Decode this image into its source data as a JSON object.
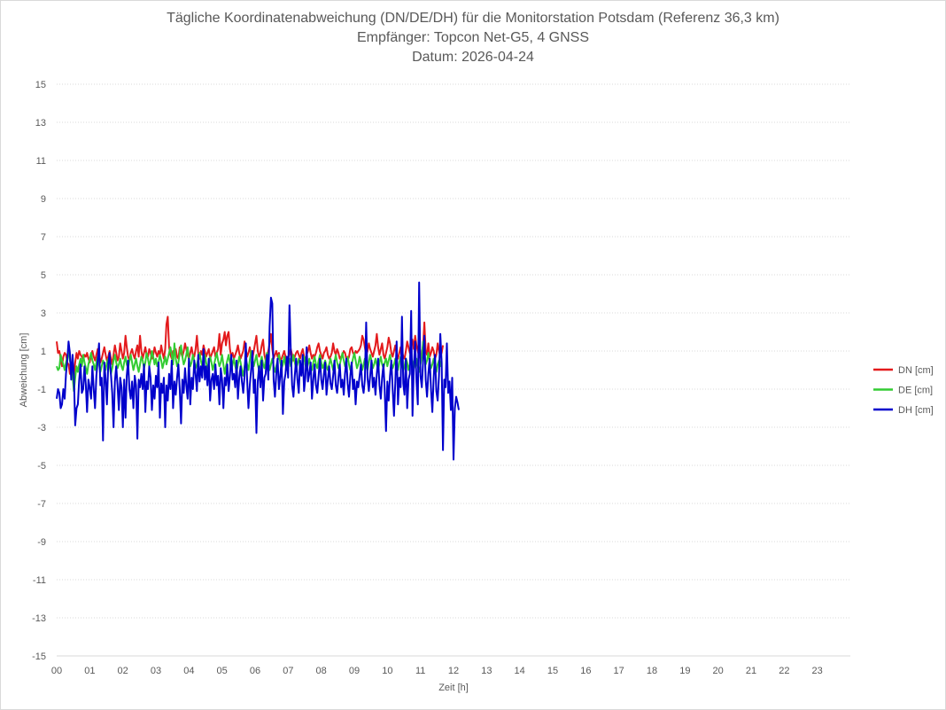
{
  "chart_data": {
    "type": "line",
    "title": "Tägliche Koordinatenabweichung (DN/DE/DH) für die Monitorstation Potsdam (Referenz 36,3 km)",
    "subtitle": "Empfänger: Topcon Net-G5, 4 GNSS",
    "date_line": "Datum: 2026-04-24",
    "xlabel": "Zeit [h]",
    "ylabel": "Abweichung [cm]",
    "xlim": [
      0,
      24
    ],
    "ylim": [
      -15,
      15
    ],
    "x_ticks": [
      "00",
      "01",
      "02",
      "03",
      "04",
      "05",
      "06",
      "07",
      "08",
      "09",
      "10",
      "11",
      "12",
      "13",
      "14",
      "15",
      "16",
      "17",
      "18",
      "19",
      "20",
      "21",
      "22",
      "23"
    ],
    "y_ticks": [
      "15",
      "13",
      "11",
      "9",
      "7",
      "5",
      "3",
      "1",
      "-1",
      "-3",
      "-5",
      "-7",
      "-9",
      "-11",
      "-13",
      "-15"
    ],
    "grid": "horizontal dotted",
    "legend_position": "right",
    "sample_interval_h": 0.04,
    "series": [
      {
        "name": "DN [cm]",
        "color": "#e31a1c",
        "values": [
          1.5,
          0.9,
          1.0,
          0.6,
          0.2,
          0.7,
          0.9,
          0.8,
          0.4,
          0.3,
          -0.2,
          0.1,
          0.3,
          -0.3,
          0.4,
          0.9,
          0.6,
          1.0,
          0.8,
          0.7,
          0.5,
          0.8,
          0.7,
          0.9,
          0.6,
          0.4,
          0.8,
          1.0,
          0.7,
          0.5,
          0.8,
          1.1,
          0.9,
          0.4,
          0.6,
          0.9,
          1.2,
          0.8,
          0.5,
          0.7,
          1.0,
          0.6,
          0.3,
          0.8,
          1.3,
          0.9,
          0.5,
          0.7,
          1.4,
          1.0,
          0.6,
          0.9,
          1.8,
          1.2,
          0.7,
          0.5,
          0.9,
          1.1,
          0.8,
          0.6,
          1.0,
          1.3,
          0.7,
          1.8,
          1.0,
          0.6,
          0.9,
          1.2,
          0.8,
          0.7,
          1.1,
          0.9,
          0.6,
          0.8,
          1.2,
          0.9,
          0.7,
          1.0,
          0.8,
          1.3,
          0.9,
          0.6,
          1.1,
          2.4,
          2.8,
          1.2,
          0.8,
          0.6,
          1.0,
          0.9,
          1.1,
          0.7,
          0.6,
          1.2,
          0.9,
          0.7,
          1.0,
          1.4,
          1.1,
          0.8,
          0.6,
          0.9,
          1.2,
          0.8,
          0.7,
          1.1,
          1.8,
          0.9,
          0.6,
          1.0,
          0.8,
          1.3,
          1.0,
          0.7,
          0.9,
          1.1,
          0.6,
          0.8,
          1.0,
          1.2,
          0.7,
          0.9,
          1.1,
          1.9,
          0.8,
          1.4,
          1.6,
          2.0,
          1.3,
          1.8,
          2.0,
          1.1,
          0.7,
          0.9,
          0.6,
          0.8,
          1.0,
          1.3,
          0.9,
          0.6,
          0.8,
          1.0,
          1.5,
          1.1,
          0.7,
          0.9,
          1.2,
          0.8,
          0.6,
          1.0,
          1.4,
          1.8,
          1.0,
          0.7,
          0.9,
          1.3,
          1.6,
          0.8,
          0.5,
          0.7,
          1.0,
          1.4,
          1.9,
          1.1,
          0.6,
          0.8,
          1.0,
          0.7,
          0.9,
          0.5,
          0.6,
          0.8,
          1.0,
          0.7,
          0.4,
          0.6,
          0.9,
          1.1,
          0.8,
          0.5,
          0.7,
          0.9,
          1.0,
          0.8,
          0.6,
          0.9,
          1.1,
          0.7,
          0.5,
          0.8,
          1.0,
          1.3,
          0.9,
          0.6,
          0.8,
          0.7,
          0.9,
          1.2,
          1.4,
          1.0,
          0.8,
          0.6,
          0.9,
          1.0,
          1.2,
          0.8,
          0.6,
          0.7,
          0.9,
          1.4,
          1.0,
          0.8,
          1.1,
          0.9,
          0.6,
          0.7,
          0.8,
          1.0,
          0.9,
          0.6,
          0.5,
          0.7,
          1.1,
          1.2,
          0.9,
          0.8,
          1.0,
          0.9,
          1.0,
          1.1,
          1.3,
          1.8,
          1.6,
          1.2,
          0.8,
          1.0,
          1.4,
          1.1,
          0.9,
          0.7,
          1.0,
          1.3,
          1.9,
          1.2,
          0.8,
          1.1,
          1.4,
          0.8,
          0.6,
          0.9,
          1.2,
          1.7,
          1.4,
          0.9,
          0.7,
          1.0,
          1.3,
          0.8,
          0.6,
          0.9,
          1.2,
          1.0,
          0.7,
          0.6,
          1.0,
          1.5,
          1.2,
          0.9,
          1.4,
          1.6,
          1.1,
          1.8,
          1.3,
          1.0,
          0.7,
          0.6,
          0.9,
          1.3,
          2.5,
          1.0,
          0.8,
          1.4,
          0.7,
          0.9,
          1.2,
          1.0,
          0.6,
          0.8,
          1.4,
          1.0,
          0.7,
          0.9,
          1.3
        ]
      },
      {
        "name": "DE [cm]",
        "color": "#33cc33",
        "values": [
          0.2,
          0.0,
          0.1,
          0.8,
          0.5,
          0.3,
          0.0,
          0.4,
          0.7,
          0.9,
          0.5,
          0.2,
          -0.3,
          -1.1,
          -0.4,
          0.2,
          -0.1,
          0.3,
          0.6,
          0.2,
          0.8,
          0.4,
          0.1,
          -0.2,
          0.3,
          0.6,
          0.9,
          0.5,
          0.3,
          0.0,
          0.4,
          0.7,
          0.3,
          -0.1,
          0.2,
          0.5,
          0.3,
          0.0,
          0.4,
          0.6,
          0.2,
          -0.2,
          0.1,
          0.5,
          0.8,
          0.4,
          0.1,
          0.3,
          0.6,
          0.2,
          0.0,
          0.4,
          0.7,
          0.3,
          0.1,
          0.5,
          0.8,
          0.4,
          0.0,
          0.3,
          0.6,
          0.2,
          -0.1,
          0.3,
          0.7,
          0.5,
          0.1,
          0.4,
          0.9,
          0.6,
          0.2,
          0.5,
          1.0,
          0.7,
          0.3,
          0.6,
          0.2,
          0.4,
          0.8,
          0.5,
          0.1,
          0.4,
          0.7,
          0.3,
          0.6,
          0.9,
          1.2,
          0.8,
          0.3,
          1.4,
          0.6,
          0.2,
          0.4,
          0.9,
          1.3,
          0.7,
          0.3,
          0.5,
          0.8,
          1.2,
          0.6,
          0.2,
          0.4,
          0.8,
          0.5,
          0.1,
          0.3,
          0.6,
          0.9,
          0.5,
          0.2,
          0.6,
          0.8,
          0.4,
          0.1,
          0.3,
          0.7,
          0.4,
          0.0,
          0.3,
          0.6,
          0.9,
          0.5,
          0.2,
          0.4,
          0.8,
          0.3,
          -0.2,
          0.2,
          0.5,
          0.8,
          0.4,
          0.0,
          0.3,
          0.6,
          0.2,
          -0.1,
          0.3,
          0.7,
          0.4,
          0.0,
          -0.3,
          0.2,
          0.6,
          0.3,
          0.0,
          0.5,
          1.0,
          0.6,
          0.2,
          0.5,
          0.8,
          0.3,
          0.0,
          0.4,
          0.7,
          0.3,
          0.1,
          0.5,
          0.9,
          0.4,
          0.0,
          0.3,
          0.6,
          0.2,
          -0.1,
          0.2,
          0.5,
          0.8,
          0.4,
          0.1,
          0.3,
          0.7,
          0.3,
          0.0,
          0.4,
          0.6,
          0.2,
          0.5,
          0.8,
          0.4,
          0.1,
          0.3,
          0.6,
          0.3,
          0.0,
          0.4,
          0.7,
          0.3,
          0.0,
          0.3,
          0.6,
          0.2,
          0.0,
          0.4,
          0.7,
          0.3,
          0.1,
          0.5,
          0.8,
          0.4,
          0.1,
          0.3,
          0.5,
          0.2,
          0.0,
          0.3,
          0.6,
          0.3,
          0.0,
          0.4,
          0.8,
          0.4,
          0.1,
          0.3,
          0.6,
          0.9,
          0.5,
          0.2,
          0.4,
          0.7,
          0.3,
          0.0,
          0.3,
          0.6,
          0.9,
          0.5,
          0.1,
          0.3,
          0.7,
          0.4,
          0.0,
          0.3,
          0.6,
          0.2,
          0.0,
          0.4,
          0.8,
          0.5,
          0.1,
          0.3,
          0.6,
          0.3,
          0.0,
          0.4,
          0.7,
          0.3,
          0.1,
          0.4,
          0.6,
          0.2,
          0.5,
          0.8,
          0.4,
          0.1,
          0.3,
          0.6,
          0.3,
          0.0,
          0.4,
          0.7,
          0.3,
          0.0,
          0.2,
          0.6,
          0.4,
          0.0,
          0.3,
          0.7,
          0.4,
          0.1,
          0.3,
          0.6,
          0.2,
          -0.1,
          0.3,
          0.7,
          1.5,
          0.8,
          0.3,
          0.5,
          0.9,
          0.4,
          0.1,
          0.3,
          0.6,
          0.2,
          -0.1,
          0.3,
          0.5,
          0.2,
          0.6
        ]
      },
      {
        "name": "DH [cm]",
        "color": "#0000cc",
        "values": [
          -1.5,
          -1.0,
          -1.2,
          -2.0,
          -1.8,
          -1.0,
          -1.5,
          -0.2,
          0.5,
          1.5,
          0.9,
          -0.5,
          0.8,
          -0.3,
          -2.9,
          -2.0,
          -1.8,
          -0.5,
          0.3,
          -1.2,
          -1.0,
          0.2,
          -0.8,
          -2.2,
          -0.5,
          -0.9,
          -1.5,
          0.2,
          -1.0,
          -2.0,
          -0.3,
          0.5,
          1.4,
          -0.8,
          -0.4,
          -3.7,
          0.4,
          -0.5,
          -1.8,
          0.3,
          0.9,
          -0.2,
          -1.2,
          -3.0,
          -0.6,
          0.2,
          -0.8,
          -2.1,
          -0.4,
          -0.9,
          -3.0,
          -0.5,
          -2.5,
          -0.3,
          0.5,
          -1.0,
          -1.5,
          -0.6,
          -2.0,
          -0.3,
          -0.8,
          -3.6,
          -0.5,
          -0.9,
          -0.2,
          -1.0,
          0.3,
          -2.2,
          -0.6,
          -1.0,
          0.2,
          -0.4,
          -2.1,
          -0.8,
          -1.5,
          -0.3,
          -0.9,
          0.4,
          -2.5,
          -0.7,
          -1.2,
          -0.4,
          -3.0,
          -0.8,
          -1.6,
          -0.2,
          -1.0,
          0.5,
          -2.0,
          -0.6,
          -1.3,
          -0.4,
          0.3,
          -1.0,
          -2.8,
          -0.5,
          -1.2,
          0.1,
          -0.8,
          -1.5,
          0.6,
          -1.8,
          -0.4,
          -1.0,
          0.5,
          -0.2,
          -1.1,
          0.8,
          -0.6,
          0.2,
          -0.4,
          1.1,
          -0.5,
          0.2,
          -0.8,
          0.6,
          -1.6,
          -0.5,
          -0.2,
          -1.0,
          0.3,
          -0.8,
          -0.3,
          -1.8,
          0.1,
          -0.5,
          -2.0,
          -0.4,
          -0.8,
          0.3,
          -1.1,
          -0.3,
          0.8,
          -0.5,
          -0.2,
          -0.9,
          0.5,
          -1.5,
          -0.4,
          0.2,
          -0.6,
          -1.2,
          -0.3,
          1.4,
          -0.5,
          -2.0,
          -0.8,
          0.0,
          1.0,
          -1.2,
          -0.5,
          -3.3,
          -0.6,
          0.2,
          -0.9,
          0.5,
          -1.6,
          -0.4,
          -0.2,
          0.8,
          -0.5,
          2.3,
          3.8,
          3.5,
          -0.5,
          -1.4,
          -0.2,
          0.6,
          -1.0,
          -0.3,
          0.5,
          -2.3,
          -0.6,
          -0.2,
          0.7,
          -0.4,
          3.4,
          1.0,
          -0.8,
          -1.4,
          -0.3,
          0.6,
          -0.5,
          -1.2,
          0.5,
          -0.3,
          0.8,
          -1.1,
          -0.4,
          1.2,
          -0.6,
          -0.2,
          0.4,
          -1.5,
          -0.5,
          0.3,
          -0.8,
          -1.2,
          -0.3,
          0.6,
          -0.5,
          -1.0,
          -0.2,
          0.4,
          -1.3,
          -0.5,
          0.2,
          -0.7,
          -1.0,
          -0.3,
          0.5,
          -0.8,
          -1.2,
          -0.4,
          0.3,
          -0.9,
          -0.5,
          -1.3,
          -0.2,
          0.6,
          -0.7,
          -1.4,
          -0.3,
          0.4,
          -1.0,
          -0.5,
          -1.8,
          -0.6,
          -0.9,
          -0.3,
          0.3,
          -0.8,
          -1.2,
          -0.5,
          2.5,
          -0.4,
          -1.1,
          -0.3,
          0.5,
          -0.9,
          -0.4,
          -1.3,
          -0.2,
          0.6,
          -0.8,
          -1.5,
          -0.4,
          0.3,
          -1.0,
          -3.2,
          -0.6,
          -1.6,
          -0.3,
          0.5,
          -1.0,
          -2.4,
          -0.6,
          1.5,
          -1.8,
          -0.4,
          -0.9,
          2.8,
          -0.7,
          -1.3,
          0.6,
          -2.0,
          -0.5,
          -0.2,
          3.1,
          -2.4,
          0.2,
          1.5,
          -0.6,
          -1.8,
          4.6,
          -0.3,
          -0.9,
          0.5,
          1.8,
          -0.5,
          -1.4,
          -0.2,
          0.6,
          -1.0,
          -2.2,
          -0.4,
          0.8,
          -1.1,
          -1.6,
          -0.3,
          1.9,
          0.4,
          -4.2,
          -0.5,
          -0.9,
          1.4,
          -1.2,
          -0.6,
          -2.1,
          -0.4,
          -4.7,
          -2.0,
          -1.4,
          -1.7,
          -2.1
        ]
      }
    ]
  }
}
